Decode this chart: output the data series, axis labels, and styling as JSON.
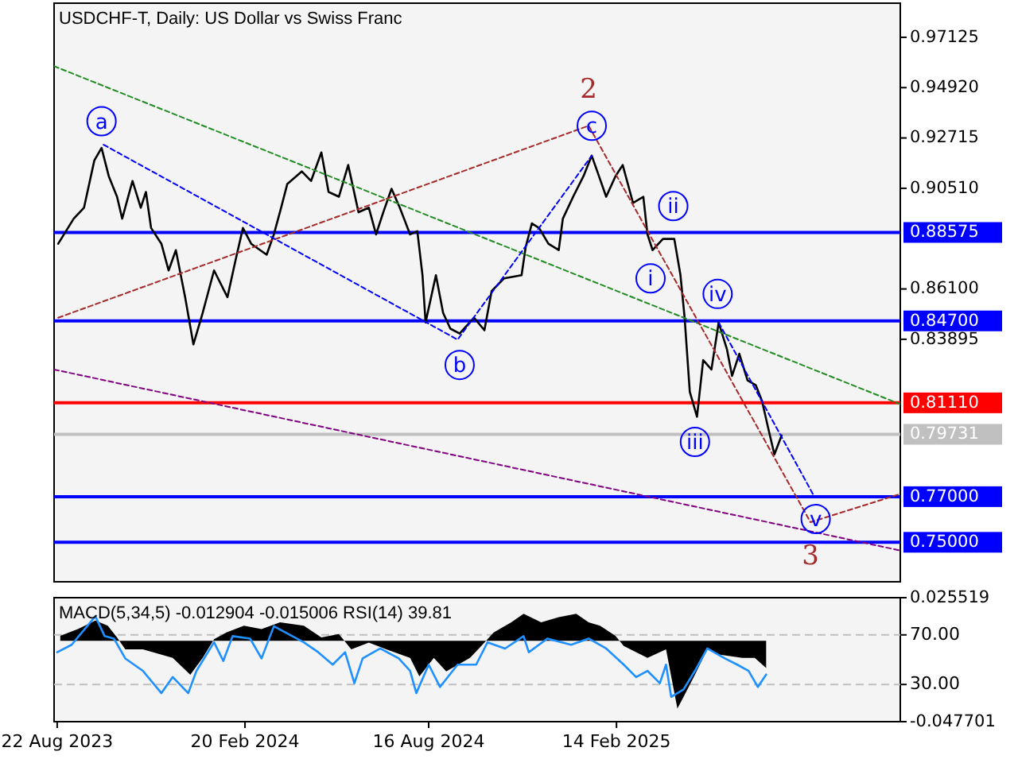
{
  "chart_data": [
    {
      "type": "line",
      "title": "USDCHF-T, Daily:  US Dollar vs Swiss Franc",
      "xlim": [
        "2023-08-19",
        "2025-11-16"
      ],
      "ylim": [
        0.7327,
        0.9862
      ],
      "yticks": [
        {
          "value": 0.97125,
          "label": "0.97125"
        },
        {
          "value": 0.9492,
          "label": "0.94920"
        },
        {
          "value": 0.92715,
          "label": "0.92715"
        },
        {
          "value": 0.9051,
          "label": "0.90510"
        },
        {
          "value": 0.861,
          "label": "0.86100"
        },
        {
          "value": 0.83895,
          "label": "0.83895"
        }
      ],
      "tick_labels": "y",
      "ref_lines": [
        {
          "axis": "y",
          "value": 0.88575,
          "label": "0.88575",
          "color": "#0000ff"
        },
        {
          "axis": "y",
          "value": 0.847,
          "label": "0.84700",
          "color": "#0000ff"
        },
        {
          "axis": "y",
          "value": 0.8111,
          "label": "0.81110",
          "color": "#ff0000"
        },
        {
          "axis": "y",
          "value": 0.79731,
          "label": "0.79731",
          "color": "#c0c0c0"
        },
        {
          "axis": "y",
          "value": 0.77,
          "label": "0.77000",
          "color": "#0000ff"
        },
        {
          "axis": "y",
          "value": 0.75,
          "label": "0.75000",
          "color": "#0000ff"
        }
      ],
      "series": [
        {
          "color": "#000000",
          "x": [
            "2023-08-23",
            "2023-09-07",
            "2023-09-17",
            "2023-09-27",
            "2023-10-04",
            "2023-10-11",
            "2023-10-19",
            "2023-10-24",
            "2023-11-03",
            "2023-11-11",
            "2023-11-16",
            "2023-11-21",
            "2023-12-01",
            "2023-12-08",
            "2023-12-15",
            "2023-12-24",
            "2024-01-01",
            "2024-01-10",
            "2024-01-21",
            "2024-02-03",
            "2024-02-11",
            "2024-02-18",
            "2024-02-26",
            "2024-03-12",
            "2024-03-19",
            "2024-03-26",
            "2024-04-01",
            "2024-04-15",
            "2024-04-24",
            "2024-05-04",
            "2024-05-11",
            "2024-05-21",
            "2024-05-30",
            "2024-06-09",
            "2024-06-19",
            "2024-06-26",
            "2024-07-03",
            "2024-07-11",
            "2024-07-19",
            "2024-07-29",
            "2024-08-05",
            "2024-08-10",
            "2024-08-13",
            "2024-08-23",
            "2024-08-30",
            "2024-09-06",
            "2024-09-15",
            "2024-09-29",
            "2024-10-09",
            "2024-10-16",
            "2024-10-28",
            "2024-11-14",
            "2024-11-18",
            "2024-11-24",
            "2024-12-01",
            "2024-12-10",
            "2024-12-20",
            "2024-12-24",
            "2025-01-03",
            "2025-01-13",
            "2025-01-21",
            "2025-01-28",
            "2025-02-04",
            "2025-02-13",
            "2025-02-20",
            "2025-03-02",
            "2025-03-12",
            "2025-03-16",
            "2025-03-21",
            "2025-03-31",
            "2025-04-11",
            "2025-04-17",
            "2025-04-21",
            "2025-04-26",
            "2025-05-03",
            "2025-05-09",
            "2025-05-17",
            "2025-05-24",
            "2025-06-01",
            "2025-06-06",
            "2025-06-13",
            "2025-06-21",
            "2025-06-29",
            "2025-07-05",
            "2025-07-12",
            "2025-07-17",
            "2025-07-24"
          ],
          "values": [
            0.8808,
            0.8918,
            0.8966,
            0.9173,
            0.9228,
            0.9104,
            0.9014,
            0.8918,
            0.9083,
            0.8966,
            0.9035,
            0.8877,
            0.8808,
            0.8691,
            0.878,
            0.8574,
            0.8367,
            0.8505,
            0.8691,
            0.8574,
            0.8739,
            0.8877,
            0.8808,
            0.876,
            0.8849,
            0.8966,
            0.907,
            0.9125,
            0.9083,
            0.9208,
            0.9035,
            0.9014,
            0.9153,
            0.8946,
            0.8966,
            0.8849,
            0.8946,
            0.9049,
            0.8966,
            0.8849,
            0.8863,
            0.867,
            0.8463,
            0.867,
            0.8505,
            0.8436,
            0.8415,
            0.8484,
            0.8429,
            0.8601,
            0.8656,
            0.867,
            0.8794,
            0.8897,
            0.8877,
            0.8808,
            0.878,
            0.8918,
            0.9014,
            0.9104,
            0.9194,
            0.9104,
            0.9014,
            0.9104,
            0.9153,
            0.8987,
            0.9014,
            0.8849,
            0.878,
            0.8829,
            0.8829,
            0.867,
            0.8484,
            0.816,
            0.805,
            0.8298,
            0.8257,
            0.8463,
            0.8346,
            0.8229,
            0.8326,
            0.8209,
            0.8188,
            0.8119,
            0.7981,
            0.7885,
            0.7968
          ]
        },
        {
          "color": "#228b22",
          "line_style": "dotted",
          "x": [
            "2023-08-19",
            "2025-11-16"
          ],
          "values": [
            0.9586,
            0.8105
          ]
        },
        {
          "color": "#a52a2a",
          "line_style": "dotted",
          "x": [
            "2023-08-23",
            "2025-01-18",
            "2025-08-21",
            "2025-11-16"
          ],
          "values": [
            0.8484,
            0.9325,
            0.7588,
            0.7712
          ]
        },
        {
          "color": "#0000ff",
          "line_style": "dotted",
          "x": [
            "2023-10-06",
            "2024-09-13",
            "2025-01-21"
          ],
          "values": [
            0.9242,
            0.8388,
            0.9194
          ]
        },
        {
          "color": "#0000ff",
          "line_style": "dotted",
          "x": [
            "2025-05-24",
            "2025-08-24"
          ],
          "values": [
            0.8463,
            0.7706
          ]
        },
        {
          "color": "#800080",
          "line_style": "dotted",
          "x": [
            "2023-08-19",
            "2025-11-16"
          ],
          "values": [
            0.8257,
            0.7464
          ]
        }
      ],
      "annotations": [
        {
          "text": "a",
          "x": "2023-10-04",
          "y": 0.9345
        },
        {
          "text": "b",
          "x": "2024-09-15",
          "y": 0.8277
        },
        {
          "text": "c",
          "x": "2025-01-21",
          "y": 0.9325
        },
        {
          "text": "i",
          "x": "2025-03-19",
          "y": 0.8656
        },
        {
          "text": "ii",
          "x": "2025-04-10",
          "y": 0.8973
        },
        {
          "text": "iii",
          "x": "2025-05-01",
          "y": 0.794
        },
        {
          "text": "iv",
          "x": "2025-05-23",
          "y": 0.8588
        },
        {
          "text": "v",
          "x": "2025-08-26",
          "y": 0.7602
        },
        {
          "text": "2",
          "x": "2025-01-18",
          "y": 0.9325
        },
        {
          "text": "3",
          "x": "2025-08-21",
          "y": 0.7588
        }
      ]
    },
    {
      "type": "area",
      "title": "MACD(5,34,5) -0.012904 -0.015006 RSI(14) 39.81",
      "xlim": [
        "2023-08-19",
        "2025-11-16"
      ],
      "ylim": [
        -0.047701,
        0.025519
      ],
      "yticks": [
        0.025519,
        -0.047701
      ],
      "y2lim": [
        0,
        100
      ],
      "y2ticks": [
        {
          "value": 70,
          "label": "70.00"
        },
        {
          "value": 30,
          "label": "30.00"
        }
      ],
      "xticks": [
        {
          "value": "2023-08-22",
          "label": "22 Aug 2023"
        },
        {
          "value": "2024-02-20",
          "label": "20 Feb 2024"
        },
        {
          "value": "2024-08-16",
          "label": "16 Aug 2024"
        },
        {
          "value": "2025-02-14",
          "label": "14 Feb 2025"
        }
      ],
      "ref_lines": [
        {
          "axis": "y2",
          "value": 70,
          "color": "#c0c0c0",
          "line_style": "dashed"
        },
        {
          "axis": "y2",
          "value": 30,
          "color": "#c0c0c0",
          "line_style": "dashed"
        }
      ],
      "series": [
        {
          "color": "#000000",
          "x": [
            "2023-08-25",
            "2023-09-11",
            "2023-09-28",
            "2023-10-10",
            "2023-10-19",
            "2023-10-27",
            "2023-11-13",
            "2023-12-12",
            "2023-12-29",
            "2024-01-10",
            "2024-01-21",
            "2024-02-02",
            "2024-02-19",
            "2024-03-07",
            "2024-03-25",
            "2024-04-17",
            "2024-05-04",
            "2024-05-21",
            "2024-06-02",
            "2024-06-19",
            "2024-07-06",
            "2024-07-29",
            "2024-08-07",
            "2024-08-21",
            "2024-09-02",
            "2024-09-25",
            "2024-10-06",
            "2024-10-18",
            "2024-11-04",
            "2024-11-16",
            "2024-12-03",
            "2024-12-20",
            "2025-01-06",
            "2025-01-18",
            "2025-01-29",
            "2025-02-13",
            "2025-02-21",
            "2025-03-16",
            "2025-04-03",
            "2025-04-08",
            "2025-04-14",
            "2025-04-20",
            "2025-05-01",
            "2025-05-13",
            "2025-05-24",
            "2025-06-16",
            "2025-06-28",
            "2025-07-09"
          ],
          "values": [
            0.003,
            0.007,
            0.012,
            0.009,
            0.002,
            -0.005,
            -0.005,
            -0.01,
            -0.02,
            -0.01,
            0.001,
            0.005,
            0.009,
            0.007,
            0.011,
            0.009,
            0.002,
            0.004,
            -0.005,
            -0.001,
            -0.005,
            -0.01,
            -0.021,
            -0.01,
            -0.018,
            -0.01,
            -0.003,
            0.005,
            0.011,
            0.016,
            0.011,
            0.014,
            0.016,
            0.011,
            0.009,
            0.003,
            -0.003,
            -0.01,
            -0.005,
            -0.021,
            -0.04,
            -0.033,
            -0.02,
            -0.005,
            -0.008,
            -0.01,
            -0.01,
            -0.016
          ]
        },
        {
          "type": "line",
          "axis": "y2",
          "color": "#1e90ff",
          "x": [
            "2023-08-22",
            "2023-09-05",
            "2023-09-20",
            "2023-09-28",
            "2023-10-07",
            "2023-10-16",
            "2023-10-27",
            "2023-11-13",
            "2023-12-01",
            "2023-12-12",
            "2023-12-27",
            "2024-01-04",
            "2024-01-21",
            "2024-01-30",
            "2024-02-08",
            "2024-02-25",
            "2024-03-07",
            "2024-03-19",
            "2024-03-30",
            "2024-04-17",
            "2024-05-01",
            "2024-05-15",
            "2024-05-27",
            "2024-06-05",
            "2024-06-13",
            "2024-06-30",
            "2024-07-18",
            "2024-07-29",
            "2024-08-04",
            "2024-08-16",
            "2024-08-27",
            "2024-09-13",
            "2024-10-01",
            "2024-10-12",
            "2024-10-29",
            "2024-11-16",
            "2024-11-21",
            "2024-12-09",
            "2025-01-01",
            "2025-01-18",
            "2025-02-04",
            "2025-02-21",
            "2025-03-05",
            "2025-03-16",
            "2025-03-28",
            "2025-04-03",
            "2025-04-08",
            "2025-04-20",
            "2025-05-01",
            "2025-05-13",
            "2025-05-30",
            "2025-06-11",
            "2025-06-22",
            "2025-07-01",
            "2025-07-09"
          ],
          "values": [
            56,
            62,
            77,
            85,
            69,
            67,
            51,
            41,
            23,
            36,
            23,
            41,
            64,
            49,
            69,
            67,
            51,
            77,
            72,
            64,
            56,
            46,
            56,
            31,
            51,
            59,
            51,
            41,
            23,
            46,
            28,
            46,
            46,
            64,
            59,
            69,
            56,
            67,
            62,
            67,
            59,
            46,
            36,
            41,
            31,
            46,
            20,
            26,
            41,
            59,
            51,
            46,
            41,
            28,
            38
          ]
        }
      ]
    }
  ]
}
